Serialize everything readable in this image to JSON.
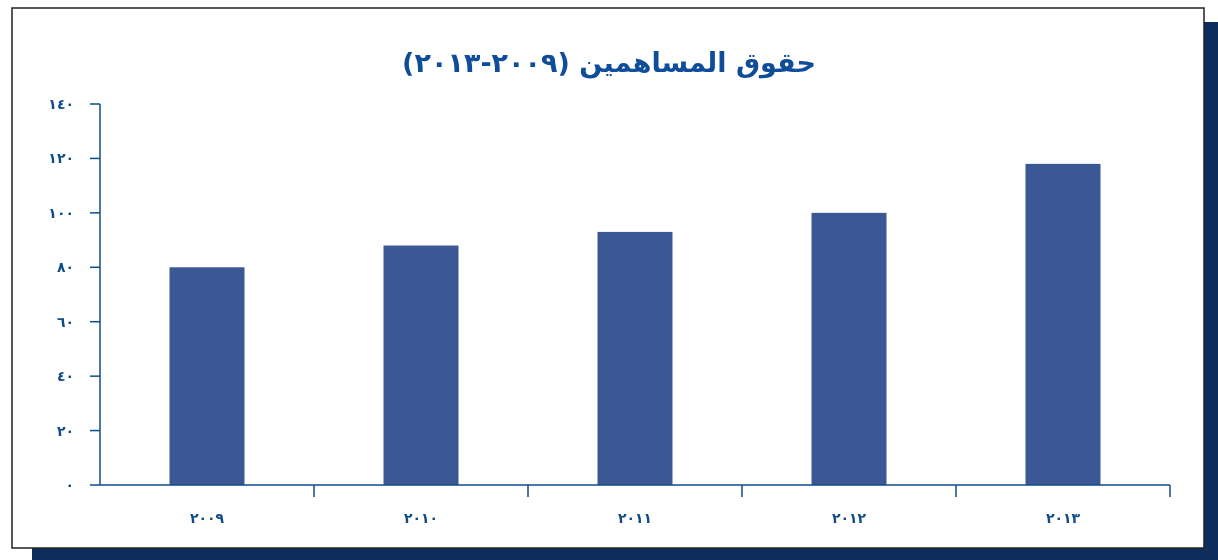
{
  "chart_data": {
    "type": "bar",
    "title": "حقوق المساهمين (٢٠٠٩-٢٠١٣)",
    "categories": [
      "٢٠٠٩",
      "٢٠١٠",
      "٢٠١١",
      "٢٠١٢",
      "٢٠١٣"
    ],
    "values": [
      80,
      88,
      93,
      100,
      118
    ],
    "color": "#3b5895",
    "ylim": [
      0,
      140
    ],
    "yticks": [
      {
        "value": 0,
        "label": "٠"
      },
      {
        "value": 20,
        "label": "٢٠"
      },
      {
        "value": 40,
        "label": "٤٠"
      },
      {
        "value": 60,
        "label": "٦٠"
      },
      {
        "value": 80,
        "label": "٨٠"
      },
      {
        "value": 100,
        "label": "١٠٠"
      },
      {
        "value": 120,
        "label": "١٢٠"
      },
      {
        "value": 140,
        "label": "١٤٠"
      }
    ],
    "grid": false
  }
}
